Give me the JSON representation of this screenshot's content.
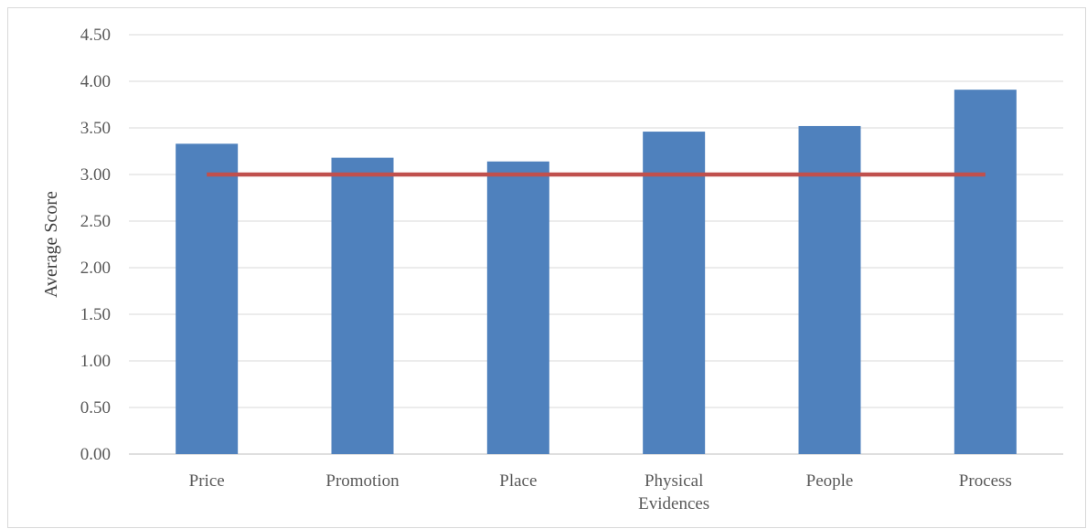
{
  "chart_data": {
    "type": "bar",
    "categories": [
      "Price",
      "Promotion",
      "Place",
      "Physical Evidences",
      "People",
      "Process"
    ],
    "category_lines": [
      [
        "Price"
      ],
      [
        "Promotion"
      ],
      [
        "Place"
      ],
      [
        "Physical",
        "Evidences"
      ],
      [
        "People"
      ],
      [
        "Process"
      ]
    ],
    "series": [
      {
        "values": [
          3.33,
          3.18,
          3.14,
          3.46,
          3.52,
          3.91
        ],
        "color": "#4f81bd",
        "type": "bar"
      },
      {
        "values": [
          3.0,
          3.0,
          3.0,
          3.0,
          3.0,
          3.0
        ],
        "color": "#c0504d",
        "type": "line"
      }
    ],
    "title": "",
    "xlabel": "",
    "ylabel": "Average Score",
    "ylim": [
      0,
      4.5
    ],
    "yticks": [
      "0.00",
      "0.50",
      "1.00",
      "1.50",
      "2.00",
      "2.50",
      "3.00",
      "3.50",
      "4.00",
      "4.50"
    ],
    "grid": true,
    "legend": "none"
  }
}
